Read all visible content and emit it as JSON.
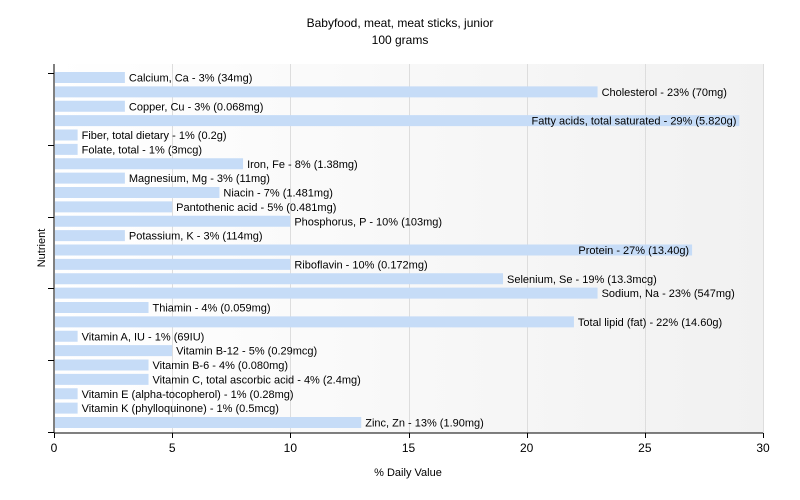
{
  "chart_data": {
    "type": "bar",
    "orientation": "horizontal",
    "title": "Babyfood, meat, meat sticks, junior",
    "subtitle": "100 grams",
    "xlabel": "% Daily Value",
    "ylabel": "Nutrient",
    "xlim": [
      0,
      30
    ],
    "xticks": [
      0,
      5,
      10,
      15,
      20,
      25,
      30
    ],
    "grid": true,
    "bar_color": "#c6dcf7",
    "categories": [
      "Calcium, Ca",
      "Cholesterol",
      "Copper, Cu",
      "Fatty acids, total saturated",
      "Fiber, total dietary",
      "Folate, total",
      "Iron, Fe",
      "Magnesium, Mg",
      "Niacin",
      "Pantothenic acid",
      "Phosphorus, P",
      "Potassium, K",
      "Protein",
      "Riboflavin",
      "Selenium, Se",
      "Sodium, Na",
      "Thiamin",
      "Total lipid (fat)",
      "Vitamin A, IU",
      "Vitamin B-12",
      "Vitamin B-6",
      "Vitamin C, total ascorbic acid",
      "Vitamin E (alpha-tocopherol)",
      "Vitamin K (phylloquinone)",
      "Zinc, Zn"
    ],
    "values": [
      3,
      23,
      3,
      29,
      1,
      1,
      8,
      3,
      7,
      5,
      10,
      3,
      27,
      10,
      19,
      23,
      4,
      22,
      1,
      5,
      4,
      4,
      1,
      1,
      13
    ],
    "labels": [
      "Calcium, Ca - 3% (34mg)",
      "Cholesterol - 23% (70mg)",
      "Copper, Cu - 3% (0.068mg)",
      "Fatty acids, total saturated - 29% (5.820g)",
      "Fiber, total dietary - 1% (0.2g)",
      "Folate, total - 1% (3mcg)",
      "Iron, Fe - 8% (1.38mg)",
      "Magnesium, Mg - 3% (11mg)",
      "Niacin - 7% (1.481mg)",
      "Pantothenic acid - 5% (0.481mg)",
      "Phosphorus, P - 10% (103mg)",
      "Potassium, K - 3% (114mg)",
      "Protein - 27% (13.40g)",
      "Riboflavin - 10% (0.172mg)",
      "Selenium, Se - 19% (13.3mcg)",
      "Sodium, Na - 23% (547mg)",
      "Thiamin - 4% (0.059mg)",
      "Total lipid (fat) - 22% (14.60g)",
      "Vitamin A, IU - 1% (69IU)",
      "Vitamin B-12 - 5% (0.29mcg)",
      "Vitamin B-6 - 4% (0.080mg)",
      "Vitamin C, total ascorbic acid - 4% (2.4mg)",
      "Vitamin E (alpha-tocopherol) - 1% (0.28mg)",
      "Vitamin K (phylloquinone) - 1% (0.5mcg)",
      "Zinc, Zn - 13% (1.90mg)"
    ]
  }
}
